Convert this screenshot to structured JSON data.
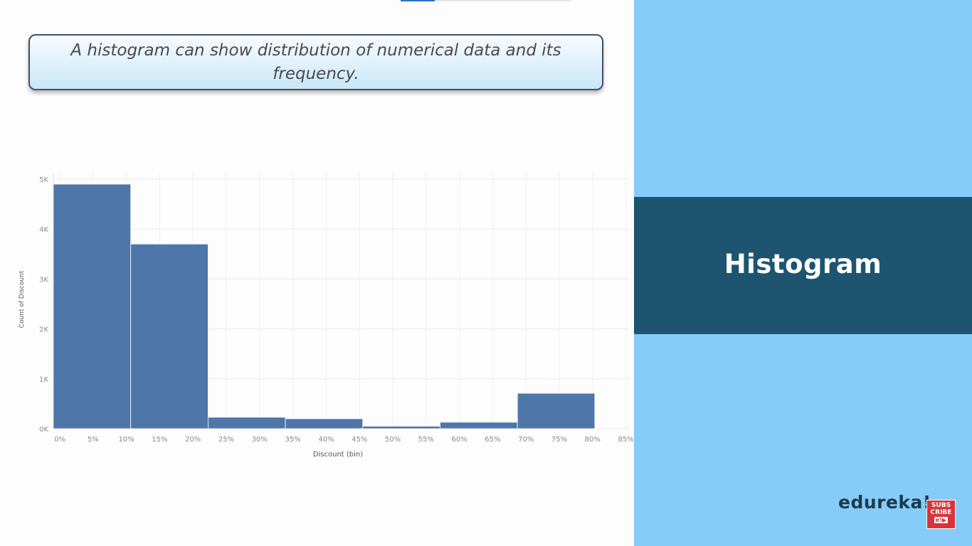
{
  "callout": {
    "text": "A histogram can show distribution of numerical data and its frequency."
  },
  "panel": {
    "title": "Histogram",
    "brand": "edureka!",
    "subscribe_line1": "SUBS",
    "subscribe_line2": "CRIBE",
    "subscribe_badge": "e!",
    "subscribe_icon": "play-icon"
  },
  "colors": {
    "bar": "#4e76a9",
    "panel_bg": "#86ccf9",
    "title_band": "#1d5571",
    "subscribe": "#d8343a"
  },
  "chart_data": {
    "type": "bar",
    "title": "",
    "xlabel": "Discount (bin)",
    "ylabel": "Count of Discount",
    "ylim": [
      0,
      5000
    ],
    "yticks": [
      0,
      1000,
      2000,
      3000,
      4000,
      5000
    ],
    "ytick_labels": [
      "0K",
      "1K",
      "2K",
      "3K",
      "4K",
      "5K"
    ],
    "xticks": [
      0,
      5,
      10,
      15,
      20,
      25,
      30,
      35,
      40,
      45,
      50,
      55,
      60,
      65,
      70,
      75,
      80,
      85
    ],
    "xtick_labels": [
      "0%",
      "5%",
      "10%",
      "15%",
      "20%",
      "25%",
      "30%",
      "35%",
      "40%",
      "45%",
      "50%",
      "55%",
      "60%",
      "65%",
      "70%",
      "75%",
      "80%",
      "85%"
    ],
    "xlim": [
      0,
      85
    ],
    "bin_width": 11.6,
    "bins": [
      {
        "start": 0,
        "end": 11.6,
        "count": 4900
      },
      {
        "start": 11.6,
        "end": 23.2,
        "count": 3700
      },
      {
        "start": 23.2,
        "end": 34.8,
        "count": 230
      },
      {
        "start": 34.8,
        "end": 46.4,
        "count": 200
      },
      {
        "start": 46.4,
        "end": 58.0,
        "count": 50
      },
      {
        "start": 58.0,
        "end": 69.6,
        "count": 130
      },
      {
        "start": 69.6,
        "end": 81.2,
        "count": 710
      }
    ],
    "grid": true,
    "legend": "none"
  }
}
